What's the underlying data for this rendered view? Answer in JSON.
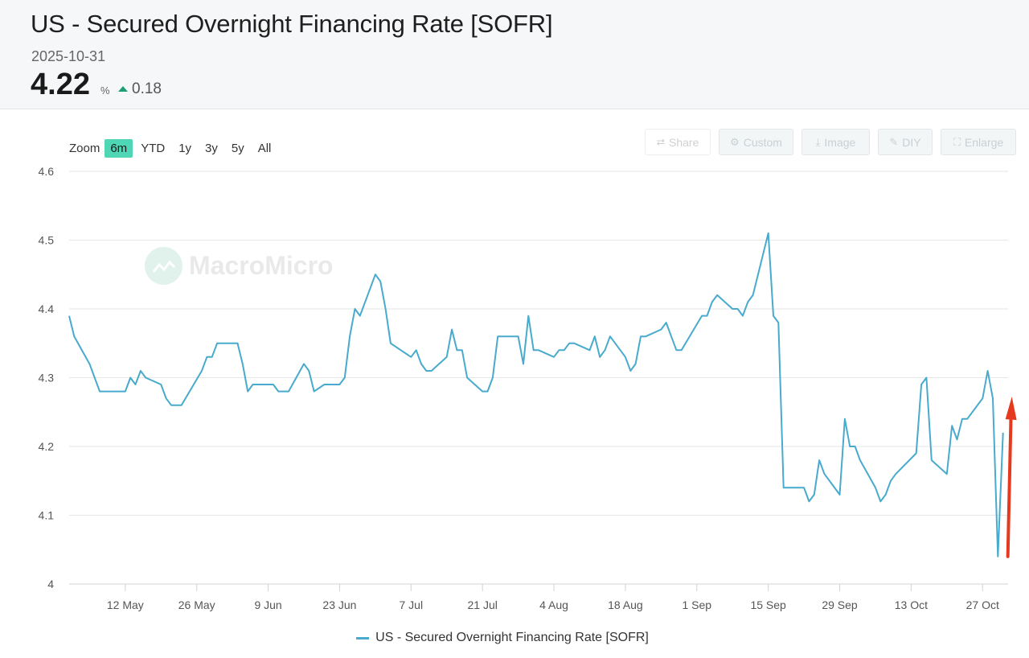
{
  "header": {
    "title": "US - Secured Overnight Financing Rate [SOFR]",
    "date": "2025-10-31",
    "value": "4.22",
    "unit": "%",
    "change": "0.18"
  },
  "zoom": {
    "label": "Zoom",
    "buttons": [
      "6m",
      "YTD",
      "1y",
      "3y",
      "5y",
      "All"
    ],
    "active": "6m"
  },
  "toolbar": {
    "share": "Share",
    "custom": "Custom",
    "image": "Image",
    "diy": "DIY",
    "enlarge": "Enlarge"
  },
  "watermark": {
    "text": "MacroMicro"
  },
  "colors": {
    "line": "#48aacc",
    "accent": "#4fd6b4",
    "up": "#1e9e74",
    "arrow": "#e53a1f"
  },
  "chart_data": {
    "type": "line",
    "title": "US - Secured Overnight Financing Rate [SOFR]",
    "ylim": [
      4.0,
      4.6
    ],
    "yticks": [
      4,
      4.1,
      4.2,
      4.3,
      4.4,
      4.5,
      4.6
    ],
    "grid": true,
    "legend_position": "bottom-center",
    "xticks": [
      {
        "date": "2025-05-12",
        "label": "12 May"
      },
      {
        "date": "2025-05-26",
        "label": "26 May"
      },
      {
        "date": "2025-06-09",
        "label": "9 Jun"
      },
      {
        "date": "2025-06-23",
        "label": "23 Jun"
      },
      {
        "date": "2025-07-07",
        "label": "7 Jul"
      },
      {
        "date": "2025-07-21",
        "label": "21 Jul"
      },
      {
        "date": "2025-08-04",
        "label": "4 Aug"
      },
      {
        "date": "2025-08-18",
        "label": "18 Aug"
      },
      {
        "date": "2025-09-01",
        "label": "1 Sep"
      },
      {
        "date": "2025-09-15",
        "label": "15 Sep"
      },
      {
        "date": "2025-09-29",
        "label": "29 Sep"
      },
      {
        "date": "2025-10-13",
        "label": "13 Oct"
      },
      {
        "date": "2025-10-27",
        "label": "27 Oct"
      }
    ],
    "x_range": [
      "2025-05-01",
      "2025-11-01"
    ],
    "series": [
      {
        "name": "US - Secured Overnight Financing Rate [SOFR]",
        "x": [
          "2025-05-01",
          "2025-05-02",
          "2025-05-05",
          "2025-05-06",
          "2025-05-07",
          "2025-05-08",
          "2025-05-09",
          "2025-05-12",
          "2025-05-13",
          "2025-05-14",
          "2025-05-15",
          "2025-05-16",
          "2025-05-19",
          "2025-05-20",
          "2025-05-21",
          "2025-05-22",
          "2025-05-23",
          "2025-05-27",
          "2025-05-28",
          "2025-05-29",
          "2025-05-30",
          "2025-06-02",
          "2025-06-03",
          "2025-06-04",
          "2025-06-05",
          "2025-06-06",
          "2025-06-09",
          "2025-06-10",
          "2025-06-11",
          "2025-06-12",
          "2025-06-13",
          "2025-06-16",
          "2025-06-17",
          "2025-06-18",
          "2025-06-20",
          "2025-06-23",
          "2025-06-24",
          "2025-06-25",
          "2025-06-26",
          "2025-06-27",
          "2025-06-30",
          "2025-07-01",
          "2025-07-02",
          "2025-07-03",
          "2025-07-07",
          "2025-07-08",
          "2025-07-09",
          "2025-07-10",
          "2025-07-11",
          "2025-07-14",
          "2025-07-15",
          "2025-07-16",
          "2025-07-17",
          "2025-07-18",
          "2025-07-21",
          "2025-07-22",
          "2025-07-23",
          "2025-07-24",
          "2025-07-25",
          "2025-07-28",
          "2025-07-29",
          "2025-07-30",
          "2025-07-31",
          "2025-08-01",
          "2025-08-04",
          "2025-08-05",
          "2025-08-06",
          "2025-08-07",
          "2025-08-08",
          "2025-08-11",
          "2025-08-12",
          "2025-08-13",
          "2025-08-14",
          "2025-08-15",
          "2025-08-18",
          "2025-08-19",
          "2025-08-20",
          "2025-08-21",
          "2025-08-22",
          "2025-08-25",
          "2025-08-26",
          "2025-08-27",
          "2025-08-28",
          "2025-08-29",
          "2025-09-02",
          "2025-09-03",
          "2025-09-04",
          "2025-09-05",
          "2025-09-08",
          "2025-09-09",
          "2025-09-10",
          "2025-09-11",
          "2025-09-12",
          "2025-09-15",
          "2025-09-16",
          "2025-09-17",
          "2025-09-18",
          "2025-09-19",
          "2025-09-22",
          "2025-09-23",
          "2025-09-24",
          "2025-09-25",
          "2025-09-26",
          "2025-09-29",
          "2025-09-30",
          "2025-10-01",
          "2025-10-02",
          "2025-10-03",
          "2025-10-06",
          "2025-10-07",
          "2025-10-08",
          "2025-10-09",
          "2025-10-10",
          "2025-10-14",
          "2025-10-15",
          "2025-10-16",
          "2025-10-17",
          "2025-10-20",
          "2025-10-21",
          "2025-10-22",
          "2025-10-23",
          "2025-10-24",
          "2025-10-27",
          "2025-10-28",
          "2025-10-29",
          "2025-10-30",
          "2025-10-31"
        ],
        "values": [
          4.39,
          4.36,
          4.32,
          4.3,
          4.28,
          4.28,
          4.28,
          4.28,
          4.3,
          4.29,
          4.31,
          4.3,
          4.29,
          4.27,
          4.26,
          4.26,
          4.26,
          4.31,
          4.33,
          4.33,
          4.35,
          4.35,
          4.35,
          4.32,
          4.28,
          4.29,
          4.29,
          4.29,
          4.28,
          4.28,
          4.28,
          4.32,
          4.31,
          4.28,
          4.29,
          4.29,
          4.3,
          4.36,
          4.4,
          4.39,
          4.45,
          4.44,
          4.4,
          4.35,
          4.33,
          4.34,
          4.32,
          4.31,
          4.31,
          4.33,
          4.37,
          4.34,
          4.34,
          4.3,
          4.28,
          4.28,
          4.3,
          4.36,
          4.36,
          4.36,
          4.32,
          4.39,
          4.34,
          4.34,
          4.33,
          4.34,
          4.34,
          4.35,
          4.35,
          4.34,
          4.36,
          4.33,
          4.34,
          4.36,
          4.33,
          4.31,
          4.32,
          4.36,
          4.36,
          4.37,
          4.38,
          4.36,
          4.34,
          4.34,
          4.39,
          4.39,
          4.41,
          4.42,
          4.4,
          4.4,
          4.39,
          4.41,
          4.42,
          4.51,
          4.39,
          4.38,
          4.14,
          4.14,
          4.14,
          4.12,
          4.13,
          4.18,
          4.16,
          4.13,
          4.24,
          4.2,
          4.2,
          4.18,
          4.14,
          4.12,
          4.13,
          4.15,
          4.16,
          4.19,
          4.29,
          4.3,
          4.18,
          4.16,
          4.23,
          4.21,
          4.24,
          4.24,
          4.27,
          4.31,
          4.27,
          4.04,
          4.22
        ]
      }
    ],
    "annotations": [
      {
        "type": "arrow",
        "color": "#e53a1f",
        "from": {
          "x": "2025-10-31",
          "y": 4.04
        },
        "to": {
          "x": "2025-10-31",
          "y": 4.27
        }
      }
    ]
  },
  "legend": {
    "label": "US - Secured Overnight Financing Rate [SOFR]"
  }
}
